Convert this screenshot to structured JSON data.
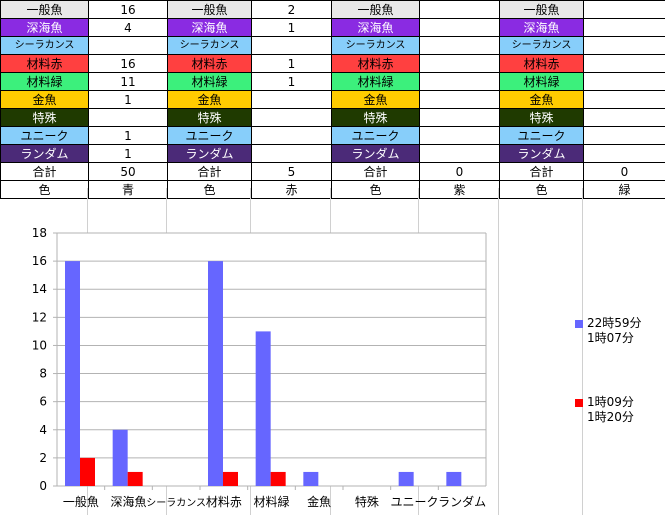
{
  "sheet": {
    "row_labels": [
      "一般魚",
      "深海魚",
      "シーラカンス",
      "材料赤",
      "材料緑",
      "金魚",
      "特殊",
      "ユニーク",
      "ランダム"
    ],
    "row_colors": [
      "#e8e8e8",
      "#8a2be2",
      "#87cefa",
      "#ff4040",
      "#3cf07c",
      "#ffcc00",
      "#1f3a00",
      "#87cefa",
      "#4b2a78"
    ],
    "row_text_colors": [
      "#000000",
      "#ffffff",
      "#000000",
      "#000000",
      "#000000",
      "#000000",
      "#ffffff",
      "#000000",
      "#ffffff"
    ],
    "groups": [
      {
        "values": [
          "16",
          "4",
          "",
          "16",
          "11",
          "1",
          "",
          "1",
          "1"
        ],
        "total_label": "合計",
        "total": "50",
        "color_label": "色",
        "color": "青"
      },
      {
        "values": [
          "2",
          "1",
          "",
          "1",
          "1",
          "",
          "",
          "",
          ""
        ],
        "total_label": "合計",
        "total": "5",
        "color_label": "色",
        "color": "赤"
      },
      {
        "values": [
          "",
          "",
          "",
          "",
          "",
          "",
          "",
          "",
          ""
        ],
        "total_label": "合計",
        "total": "0",
        "color_label": "色",
        "color": "紫"
      },
      {
        "values": [
          "",
          "",
          "",
          "",
          "",
          "",
          "",
          "",
          ""
        ],
        "total_label": "合計",
        "total": "0",
        "color_label": "色",
        "color": "緑"
      }
    ]
  },
  "chart_data": {
    "type": "bar",
    "categories": [
      "一般魚",
      "深海魚",
      "シーラカンス",
      "材料赤",
      "材料緑",
      "金魚",
      "特殊",
      "ユニーク",
      "ランダム"
    ],
    "series": [
      {
        "name": "22時59分 1時07分",
        "values": [
          16,
          4,
          0,
          16,
          11,
          1,
          0,
          1,
          1
        ],
        "color": "#6666ff"
      },
      {
        "name": "1時09分 1時20分",
        "values": [
          2,
          1,
          0,
          1,
          1,
          0,
          0,
          0,
          0
        ],
        "color": "#ff0000"
      }
    ],
    "ylim": [
      0,
      18
    ],
    "yticks": [
      "0",
      "2",
      "4",
      "6",
      "8",
      "10",
      "12",
      "14",
      "16",
      "18"
    ],
    "grid": true,
    "legend_position": "right",
    "legend": [
      {
        "line1": "22時59分",
        "line2": "1時07分",
        "color": "#6666ff"
      },
      {
        "line1": "1時09分",
        "line2": "1時20分",
        "color": "#ff0000"
      }
    ]
  }
}
